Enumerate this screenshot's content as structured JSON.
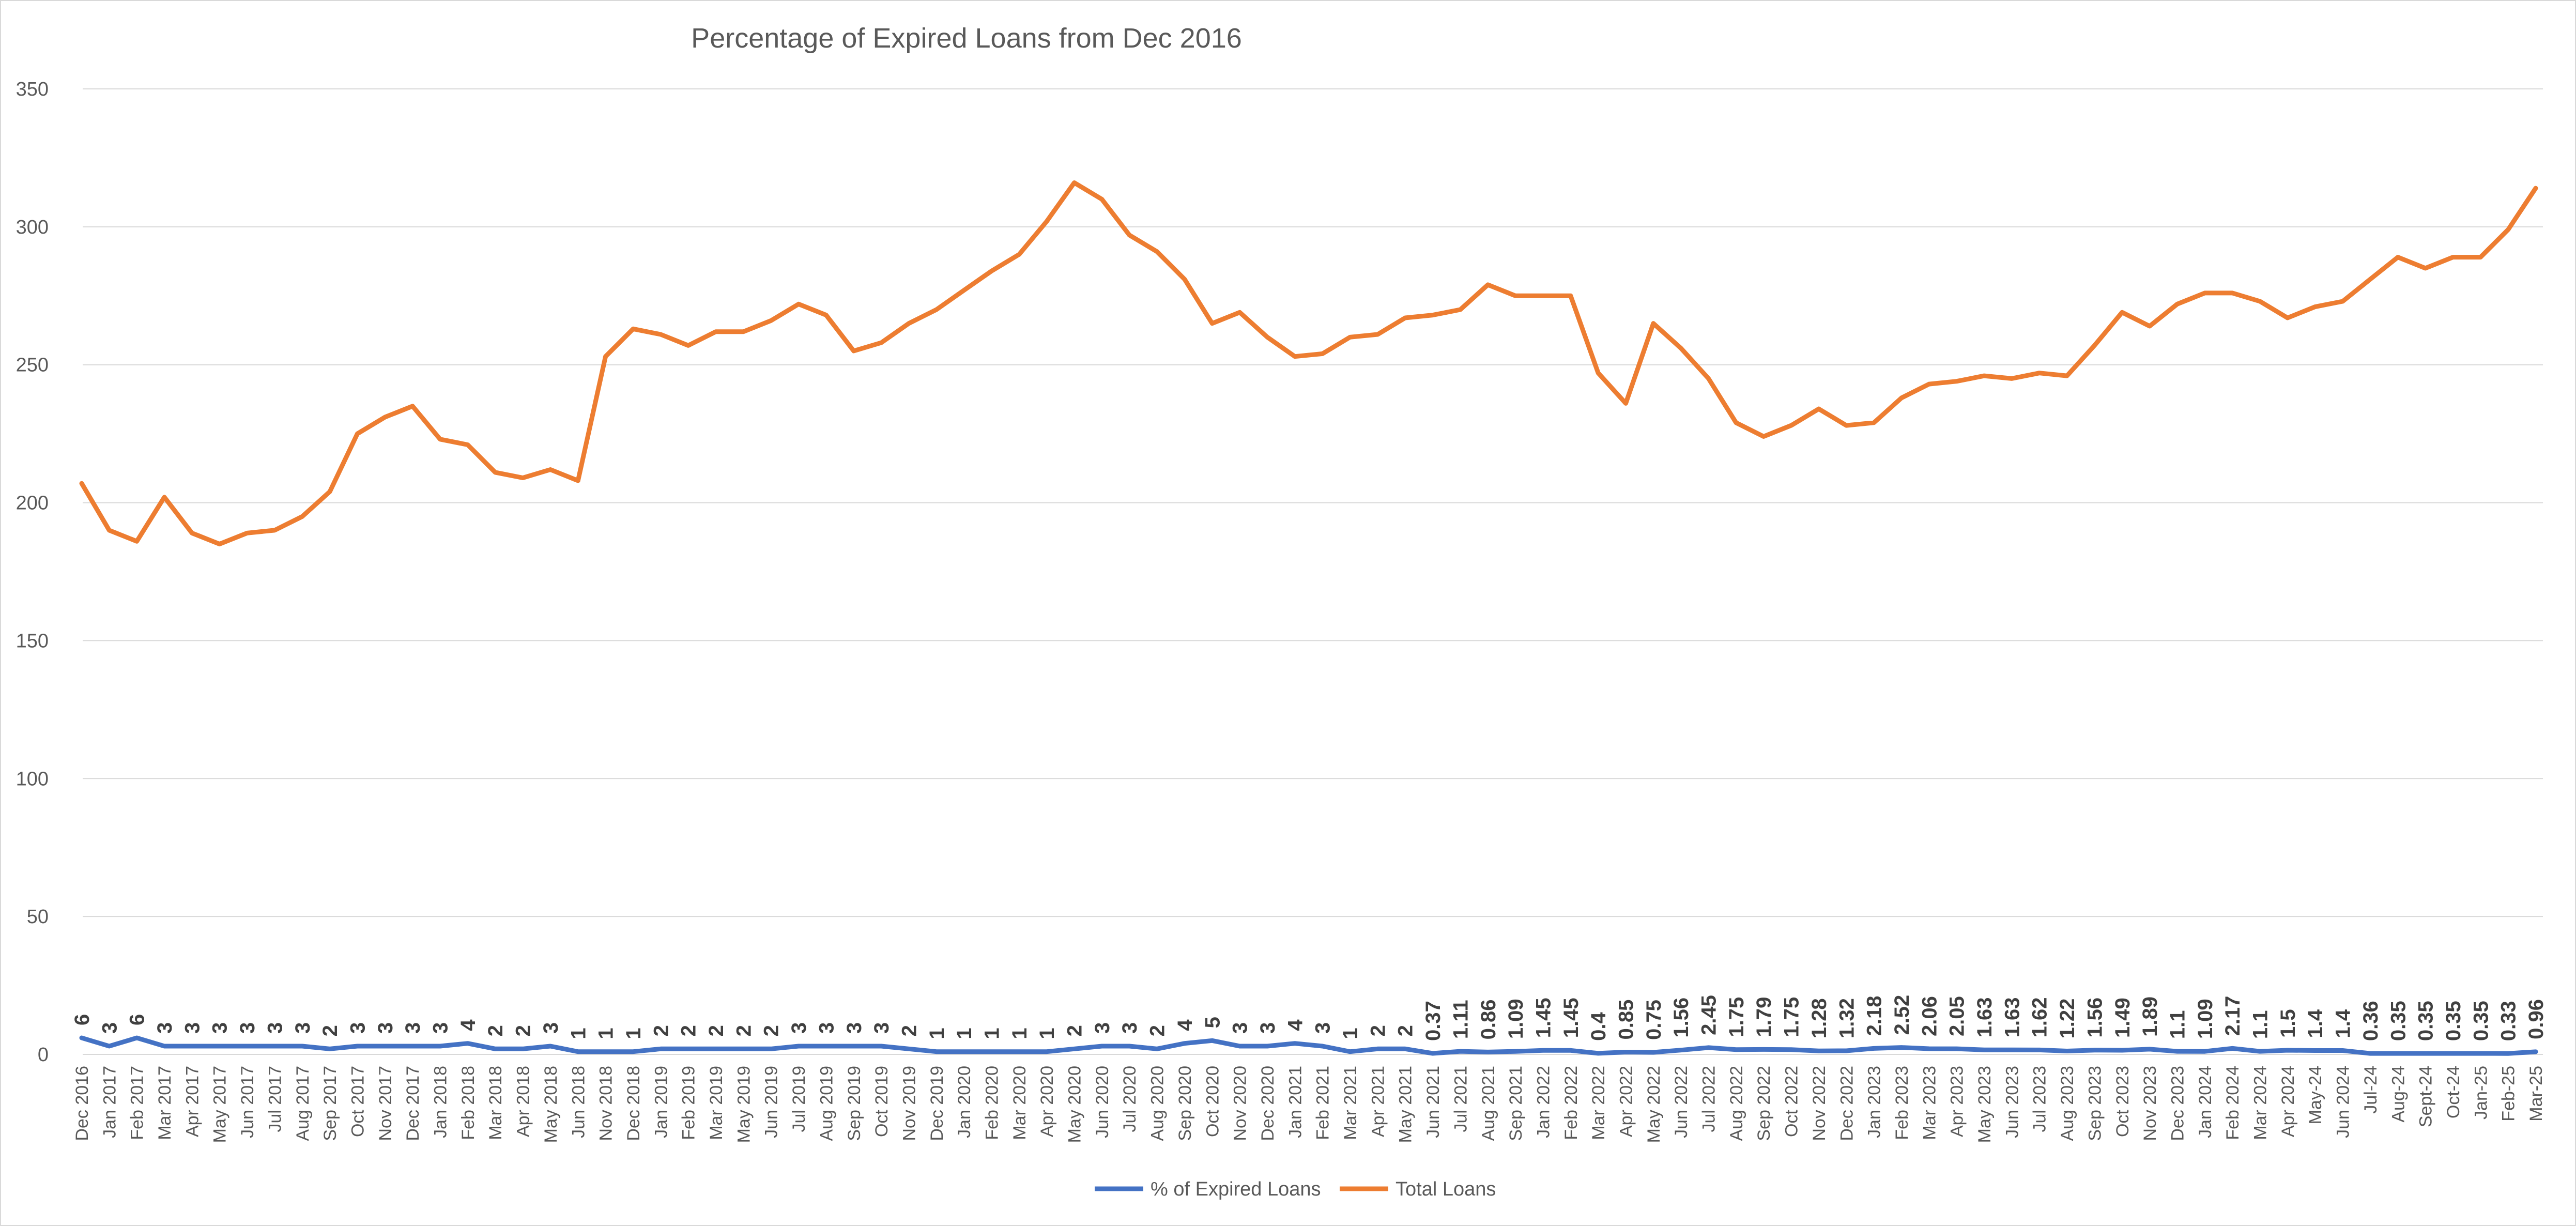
{
  "chart_data": {
    "type": "line",
    "title": "Percentage of Expired Loans from Dec 2016",
    "xlabel": "",
    "ylabel": "",
    "ylim": [
      0,
      350
    ],
    "yticks": [
      "0",
      "50",
      "100",
      "150",
      "200",
      "250",
      "300",
      "350"
    ],
    "grid": true,
    "legend_position": "bottom",
    "categories": [
      "Dec 2016",
      "Jan 2017",
      "Feb 2017",
      "Mar 2017",
      "Apr 2017",
      "May 2017",
      "Jun 2017",
      "Jul 2017",
      "Aug 2017",
      "Sep 2017",
      "Oct 2017",
      "Nov 2017",
      "Dec 2017",
      "Jan 2018",
      "Feb 2018",
      "Mar 2018",
      "Apr 2018",
      "May 2018",
      "Jun 2018",
      "Nov 2018",
      "Dec 2018",
      "Jan 2019",
      "Feb 2019",
      "Mar 2019",
      "May 2019",
      "Jun 2019",
      "Jul 2019",
      "Aug 2019",
      "Sep 2019",
      "Oct 2019",
      "Nov 2019",
      "Dec 2019",
      "Jan 2020",
      "Feb 2020",
      "Mar 2020",
      "Apr 2020",
      "May 2020",
      "Jun 2020",
      "Jul 2020",
      "Aug 2020",
      "Sep 2020",
      "Oct 2020",
      "Nov 2020",
      "Dec 2020",
      "Jan 2021",
      "Feb 2021",
      "Mar 2021",
      "Apr 2021",
      "May 2021",
      "Jun 2021",
      "Jul 2021",
      "Aug 2021",
      "Sep 2021",
      "Jan 2022",
      "Feb 2022",
      "Mar 2022",
      "Apr 2022",
      "May 2022",
      "Jun 2022",
      "Jul 2022",
      "Aug 2022",
      "Sep 2022",
      "Oct 2022",
      "Nov 2022",
      "Dec 2022",
      "Jan 2023",
      "Feb 2023",
      "Mar 2023",
      "Apr 2023",
      "May 2023",
      "Jun 2023",
      "Jul 2023",
      "Aug 2023",
      "Sep 2023",
      "Oct 2023",
      "Nov 2023",
      "Dec 2023",
      "Jan 2024",
      "Feb 2024",
      "Mar 2024",
      "Apr 2024",
      "May-24",
      "Jun 2024",
      "Jul-24",
      "Aug-24",
      "Sept-24",
      "Oct-24",
      "Jan-25",
      "Feb-25",
      "Mar-25"
    ],
    "series": [
      {
        "name": "% of Expired Loans",
        "color": "#4472C4",
        "values": [
          6,
          3,
          6,
          3,
          3,
          3,
          3,
          3,
          3,
          2,
          3,
          3,
          3,
          3,
          4,
          2,
          2,
          3,
          1,
          1,
          1,
          2,
          2,
          2,
          2,
          2,
          3,
          3,
          3,
          3,
          2,
          1,
          1,
          1,
          1,
          1,
          2,
          3,
          3,
          2,
          4,
          5,
          3,
          3,
          4,
          3,
          1,
          2,
          2,
          0.37,
          1.11,
          0.86,
          1.09,
          1.45,
          1.45,
          0.4,
          0.85,
          0.75,
          1.56,
          2.45,
          1.75,
          1.79,
          1.75,
          1.28,
          1.32,
          2.18,
          2.52,
          2.06,
          2.05,
          1.63,
          1.63,
          1.62,
          1.22,
          1.56,
          1.49,
          1.89,
          1.1,
          1.09,
          2.17,
          1.1,
          1.5,
          1.4,
          1.4,
          0.36,
          0.35,
          0.35,
          0.35,
          0.35,
          0.33,
          0.96
        ],
        "data_labels": [
          "6",
          "3",
          "6",
          "3",
          "3",
          "3",
          "3",
          "3",
          "3",
          "2",
          "3",
          "3",
          "3",
          "3",
          "4",
          "2",
          "2",
          "3",
          "1",
          "1",
          "1",
          "2",
          "2",
          "2",
          "2",
          "2",
          "3",
          "3",
          "3",
          "3",
          "2",
          "1",
          "1",
          "1",
          "1",
          "1",
          "2",
          "3",
          "3",
          "2",
          "4",
          "5",
          "3",
          "3",
          "4",
          "3",
          "1",
          "2",
          "2",
          "0.37",
          "1.11",
          "0.86",
          "1.09",
          "1.45",
          "1.45",
          "0.4",
          "0.85",
          "0.75",
          "1.56",
          "2.45",
          "1.75",
          "1.79",
          "1.75",
          "1.28",
          "1.32",
          "2.18",
          "2.52",
          "2.06",
          "2.05",
          "1.63",
          "1.63",
          "1.62",
          "1.22",
          "1.56",
          "1.49",
          "1.89",
          "1.1",
          "1.09",
          "2.17",
          "1.1",
          "1.5",
          "1.4",
          "1.4",
          "0.36",
          "0.35",
          "0.35",
          "0.35",
          "0.35",
          "0.33",
          "0.96"
        ]
      },
      {
        "name": "Total Loans",
        "color": "#ED7D31",
        "values": [
          207,
          190,
          186,
          202,
          189,
          185,
          189,
          190,
          195,
          204,
          225,
          231,
          235,
          223,
          221,
          211,
          209,
          212,
          208,
          253,
          263,
          261,
          257,
          262,
          262,
          266,
          272,
          268,
          255,
          258,
          265,
          270,
          277,
          284,
          290,
          302,
          316,
          310,
          297,
          291,
          281,
          265,
          269,
          260,
          253,
          254,
          260,
          261,
          267,
          268,
          270,
          279,
          275,
          275,
          275,
          247,
          236,
          265,
          256,
          245,
          229,
          224,
          228,
          234,
          228,
          229,
          238,
          243,
          244,
          246,
          245,
          247,
          246,
          257,
          269,
          264,
          272,
          276,
          276,
          273,
          267,
          271,
          273,
          281,
          289,
          285,
          289,
          289,
          299,
          314
        ]
      }
    ]
  }
}
